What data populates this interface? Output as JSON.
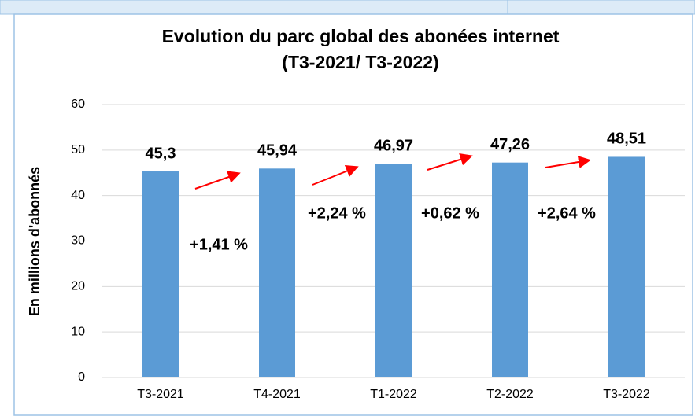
{
  "chart_data": {
    "type": "bar",
    "title": "Evolution du parc global des abonées internet",
    "subtitle": "(T3-2021/ T3-2022)",
    "y_label": "En millions d'abonnés",
    "categories": [
      "T3-2021",
      "T4-2021",
      "T1-2022",
      "T2-2022",
      "T3-2022"
    ],
    "values": [
      45.3,
      45.94,
      46.97,
      47.26,
      48.51
    ],
    "value_labels": [
      "45,3",
      "45,94",
      "46,97",
      "47,26",
      "48,51"
    ],
    "color": "#5b9bd5",
    "ylim": [
      0,
      60
    ],
    "yticks": [
      0,
      10,
      20,
      30,
      40,
      50,
      60
    ],
    "grid": true,
    "annotations": [
      "+1,41 %",
      "+2,24 %",
      "+0,62 %",
      "+2,64 %"
    ]
  }
}
